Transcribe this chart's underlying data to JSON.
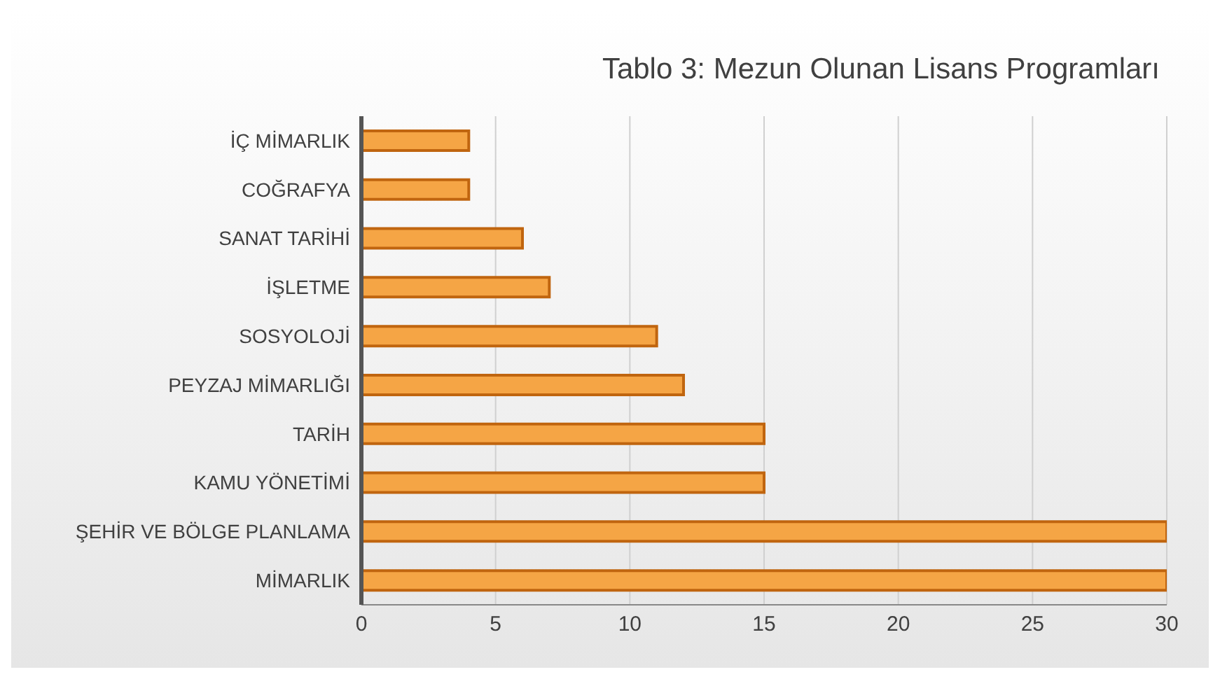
{
  "chart_data": {
    "type": "bar",
    "orientation": "horizontal",
    "title": "Tablo 3: Mezun Olunan Lisans Programları",
    "categories": [
      "İÇ MİMARLIK",
      "COĞRAFYA",
      "SANAT TARİHİ",
      "İŞLETME",
      "SOSYOLOJİ",
      "PEYZAJ MİMARLIĞI",
      "TARİH",
      "KAMU YÖNETİMİ",
      "ŞEHİR VE BÖLGE PLANLAMA",
      "MİMARLIK"
    ],
    "values": [
      4,
      4,
      6,
      7,
      11,
      12,
      15,
      15,
      30,
      30
    ],
    "color": "#f5a545",
    "xlim": [
      0,
      30
    ],
    "xticks": [
      0,
      5,
      10,
      15,
      20,
      25,
      30
    ],
    "grid": "x",
    "legend": false
  }
}
